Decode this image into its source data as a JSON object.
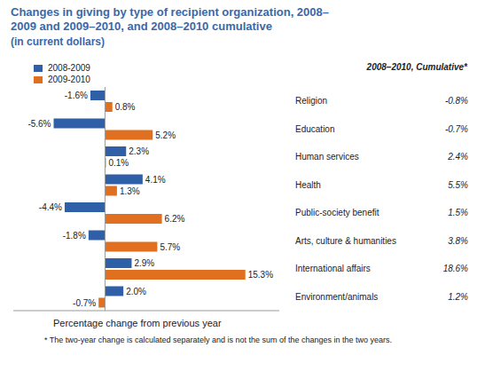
{
  "chart_data": {
    "type": "bar",
    "orientation": "horizontal",
    "title": "Changes in giving by type of recipient organization, 2008–2009 and 2009–2010, and 2008–2010 cumulative",
    "subtitle": "(in current dollars)",
    "x_label": "Percentage change from previous year",
    "categories": [
      "Religion",
      "Education",
      "Human services",
      "Health",
      "Public-society benefit",
      "Arts, culture & humanities",
      "International affairs",
      "Environment/animals"
    ],
    "series": [
      {
        "name": "2008-2009",
        "color": "#2f5fa7",
        "values": [
          -1.6,
          -5.6,
          2.3,
          4.1,
          -4.4,
          -1.8,
          2.9,
          2.0
        ],
        "value_labels": [
          "-1.6%",
          "-5.6%",
          "2.3%",
          "4.1%",
          "-4.4%",
          "-1.8%",
          "2.9%",
          "2.0%"
        ]
      },
      {
        "name": "2009-2010",
        "color": "#e0701f",
        "values": [
          0.8,
          5.2,
          0.1,
          1.3,
          6.2,
          5.7,
          15.3,
          -0.7
        ],
        "value_labels": [
          "0.8%",
          "5.2%",
          "0.1%",
          "1.3%",
          "6.2%",
          "5.7%",
          "15.3%",
          "-0.7%"
        ]
      }
    ],
    "cumulative": {
      "title": "2008–2010, Cumulative*",
      "values": [
        -0.8,
        -0.7,
        2.4,
        5.5,
        1.5,
        3.8,
        18.6,
        1.2
      ],
      "value_labels": [
        "-0.8%",
        "-0.7%",
        "2.4%",
        "5.5%",
        "1.5%",
        "3.8%",
        "18.6%",
        "1.2%"
      ]
    },
    "xlim": [
      -10,
      19
    ],
    "tick_labels": "y",
    "data_labels": true,
    "legend": "upper left",
    "grid": false,
    "footnote": "* The two-year change is calculated separately and is not the sum of the changes in the two years."
  }
}
